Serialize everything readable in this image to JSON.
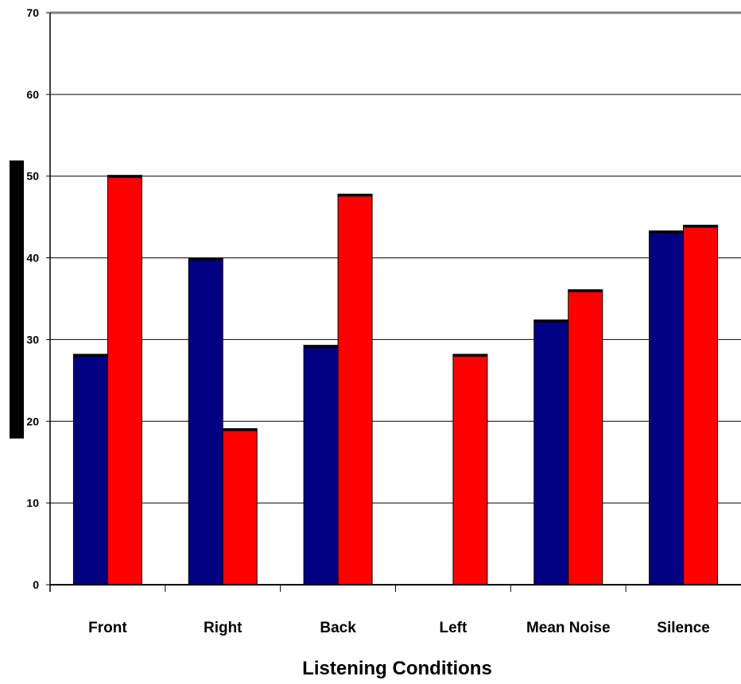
{
  "chart_data": {
    "type": "bar",
    "title": "",
    "xlabel": "Listening Conditions",
    "ylabel": "",
    "ylim": [
      0,
      70
    ],
    "yticks": [
      0,
      10,
      20,
      30,
      40,
      50,
      60,
      70
    ],
    "grid": true,
    "categories": [
      "Front",
      "Right",
      "Back",
      "Left",
      "Mean Noise",
      "Silence"
    ],
    "series": [
      {
        "values": [
          28.2,
          40,
          29.3,
          0,
          32.4,
          43.3
        ],
        "color": "#000080"
      },
      {
        "values": [
          50.1,
          19.1,
          47.8,
          28.2,
          36.1,
          44.0
        ],
        "color": "#ff0000"
      }
    ]
  }
}
